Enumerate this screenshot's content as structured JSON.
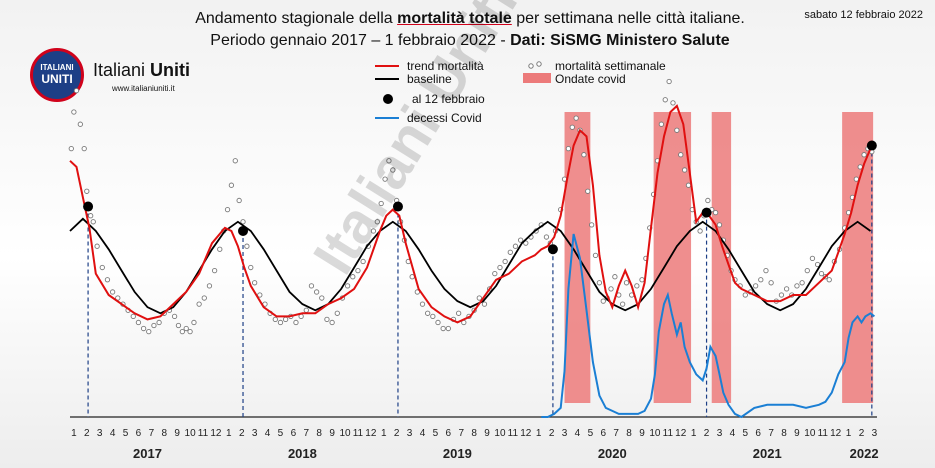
{
  "header": {
    "title_pre": "Andamento stagionale della ",
    "title_em": "mortalità totale",
    "title_post": " per settimana nelle città italiane.",
    "subtitle_pre": "Periodo gennaio 2017 – 1 febbraio 2022 - ",
    "subtitle_em": "Dati: SiSMG Ministero Salute",
    "date": "sabato 12 febbraio 2022"
  },
  "brand": {
    "logo_line1": "ITALIANI",
    "logo_line2": "UNITI",
    "name_pre": "Italiani ",
    "name_em": "Uniti",
    "site": "www.italianiuniti.it",
    "watermark": "Italiani Uniti"
  },
  "colors": {
    "trend": "#e01010",
    "baseline": "#000000",
    "weekly": "#7a7a7a",
    "covid_waves": "#ec7a7a",
    "covid_deaths": "#1b7fd4",
    "marker": "#000000"
  },
  "chart_data": {
    "type": "line",
    "x_unit": "month index (0 = start of Jan 2017)",
    "x_range": [
      0,
      62.5
    ],
    "y_range": [
      0,
      100
    ],
    "month_ticks": [
      "1",
      "2",
      "3",
      "4",
      "5",
      "6",
      "7",
      "8",
      "9",
      "10",
      "11",
      "12"
    ],
    "years": [
      {
        "label": "2017",
        "start": 0,
        "months": 12
      },
      {
        "label": "2018",
        "start": 12,
        "months": 12
      },
      {
        "label": "2019",
        "start": 24,
        "months": 12
      },
      {
        "label": "2020",
        "start": 36,
        "months": 12
      },
      {
        "label": "2021",
        "start": 48,
        "months": 12
      },
      {
        "label": "2022",
        "start": 60,
        "months": 3
      }
    ],
    "legend": [
      {
        "label": "trend mortalità",
        "kind": "line",
        "color": "#e01010"
      },
      {
        "label": "baseline",
        "kind": "line",
        "color": "#000000"
      },
      {
        "label": "al 12 febbraio",
        "kind": "marker",
        "color": "#000000"
      },
      {
        "label": "decessi Covid",
        "kind": "line",
        "color": "#1b7fd4"
      },
      {
        "label": "mortalità settimanale",
        "kind": "dot",
        "color": "#7a7a7a"
      },
      {
        "label": "Ondate covid",
        "kind": "band",
        "color": "#ec7a7a"
      }
    ],
    "covid_waves": [
      [
        38.3,
        40.3
      ],
      [
        45.2,
        48.1
      ],
      [
        49.7,
        51.2
      ],
      [
        59.8,
        62.2
      ]
    ],
    "markers": [
      {
        "x": 1.4,
        "y": 69
      },
      {
        "x": 13.4,
        "y": 61
      },
      {
        "x": 25.4,
        "y": 69
      },
      {
        "x": 37.4,
        "y": 55
      },
      {
        "x": 49.3,
        "y": 67
      },
      {
        "x": 62.1,
        "y": 89
      }
    ],
    "trend": {
      "x": [
        0,
        0.5,
        1,
        1.5,
        2,
        3,
        4,
        5,
        6,
        7,
        8,
        9,
        10,
        11,
        12,
        12.5,
        13,
        13.5,
        14,
        15,
        16,
        17,
        18,
        19,
        20,
        21,
        22,
        23,
        24,
        24.5,
        25,
        25.5,
        26,
        27,
        28,
        29,
        30,
        31,
        32,
        33,
        34,
        35,
        36,
        36.5,
        37,
        37.5,
        38,
        38.5,
        39,
        39.5,
        40,
        40.5,
        41,
        41.5,
        42,
        42.5,
        43,
        43.5,
        44,
        44.5,
        45,
        45.5,
        46,
        46.5,
        47,
        47.5,
        48,
        48.5,
        49,
        49.5,
        50,
        50.5,
        51,
        51.5,
        52,
        53,
        54,
        55,
        56,
        57,
        58,
        59,
        59.5,
        60,
        60.5,
        61,
        61.5,
        62,
        62.3
      ],
      "y": [
        84,
        82,
        72,
        62,
        47,
        40,
        37,
        34,
        32,
        33,
        37,
        41,
        47,
        57,
        62,
        61,
        56,
        49,
        43,
        36,
        33,
        33,
        34,
        34,
        37,
        39,
        42,
        49,
        61,
        66,
        68,
        66,
        57,
        42,
        36,
        33,
        31,
        33,
        39,
        45,
        47,
        51,
        53,
        55,
        56,
        59,
        66,
        78,
        89,
        94,
        92,
        76,
        53,
        41,
        36,
        43,
        48,
        43,
        36,
        44,
        62,
        80,
        92,
        100,
        102,
        96,
        80,
        64,
        67,
        66,
        63,
        56,
        50,
        44,
        42,
        40,
        38,
        38,
        40,
        40,
        44,
        48,
        54,
        60,
        67,
        76,
        83,
        88,
        90
      ]
    },
    "baseline": {
      "x": [
        0,
        1,
        2,
        3,
        4,
        5,
        6,
        7,
        8,
        9,
        10,
        11,
        12,
        13,
        14,
        15,
        16,
        17,
        18,
        19,
        20,
        21,
        22,
        23,
        24,
        25,
        26,
        27,
        28,
        29,
        30,
        31,
        32,
        33,
        34,
        35,
        36,
        37,
        38,
        39,
        40,
        41,
        42,
        43,
        44,
        45,
        46,
        47,
        48,
        49,
        50,
        51,
        52,
        53,
        54,
        55,
        56,
        57,
        58,
        59,
        60,
        61,
        62
      ],
      "y": [
        61,
        65,
        61,
        55,
        48,
        41,
        36,
        34,
        36,
        41,
        48,
        55,
        61,
        64,
        61,
        55,
        48,
        41,
        37,
        35,
        37,
        42,
        49,
        56,
        61,
        64,
        61,
        55,
        48,
        42,
        38,
        36,
        38,
        43,
        50,
        57,
        61,
        64,
        61,
        55,
        48,
        41,
        37,
        35,
        37,
        42,
        49,
        56,
        61,
        64,
        61,
        55,
        48,
        41,
        37,
        35,
        37,
        42,
        49,
        56,
        61,
        64,
        61
      ]
    },
    "covid_deaths": {
      "x": [
        36.5,
        37,
        37.5,
        38,
        38.3,
        38.6,
        39,
        39.5,
        40,
        40.5,
        41,
        41.5,
        42,
        42.5,
        43,
        43.5,
        44,
        44.5,
        45,
        45.3,
        45.6,
        46,
        46.3,
        46.6,
        47,
        47.3,
        47.6,
        48,
        48.5,
        49,
        49.3,
        49.6,
        50,
        50.3,
        50.6,
        51,
        51.5,
        52,
        53,
        54,
        55,
        56,
        57,
        58,
        58.5,
        59,
        59.5,
        60,
        60.3,
        60.6,
        61,
        61.3,
        61.6,
        62,
        62.3
      ],
      "y": [
        0,
        0,
        1,
        3,
        15,
        42,
        60,
        52,
        35,
        18,
        7,
        3,
        2,
        1,
        1,
        1,
        1,
        2,
        6,
        14,
        28,
        37,
        40,
        34,
        27,
        31,
        23,
        18,
        14,
        12,
        16,
        23,
        20,
        14,
        8,
        4,
        1,
        0,
        3,
        4,
        4,
        4,
        3,
        4,
        5,
        8,
        14,
        18,
        26,
        31,
        33,
        31,
        33,
        34,
        33
      ]
    },
    "weekly_dots": [
      [
        0.1,
        88
      ],
      [
        0.3,
        100
      ],
      [
        0.5,
        107
      ],
      [
        0.8,
        96
      ],
      [
        1.1,
        88
      ],
      [
        1.3,
        74
      ],
      [
        1.6,
        66
      ],
      [
        1.8,
        64
      ],
      [
        2.1,
        56
      ],
      [
        2.5,
        49
      ],
      [
        2.9,
        45
      ],
      [
        3.3,
        41
      ],
      [
        3.7,
        39
      ],
      [
        4.1,
        37
      ],
      [
        4.5,
        35
      ],
      [
        4.9,
        33
      ],
      [
        5.3,
        31
      ],
      [
        5.7,
        29
      ],
      [
        6.1,
        28
      ],
      [
        6.5,
        30
      ],
      [
        6.9,
        31
      ],
      [
        7.3,
        34
      ],
      [
        7.7,
        35
      ],
      [
        8.1,
        33
      ],
      [
        8.4,
        30
      ],
      [
        8.7,
        28
      ],
      [
        9.0,
        29
      ],
      [
        9.3,
        28
      ],
      [
        9.6,
        31
      ],
      [
        10.0,
        37
      ],
      [
        10.4,
        39
      ],
      [
        10.8,
        43
      ],
      [
        11.2,
        48
      ],
      [
        11.6,
        55
      ],
      [
        11.9,
        61
      ],
      [
        12.2,
        68
      ],
      [
        12.5,
        76
      ],
      [
        12.8,
        84
      ],
      [
        13.1,
        71
      ],
      [
        13.4,
        64
      ],
      [
        13.7,
        56
      ],
      [
        14.0,
        49
      ],
      [
        14.3,
        44
      ],
      [
        14.7,
        40
      ],
      [
        15.1,
        37
      ],
      [
        15.5,
        34
      ],
      [
        15.9,
        32
      ],
      [
        16.3,
        31
      ],
      [
        16.7,
        32
      ],
      [
        17.1,
        33
      ],
      [
        17.5,
        31
      ],
      [
        17.9,
        33
      ],
      [
        18.3,
        35
      ],
      [
        18.7,
        43
      ],
      [
        19.1,
        41
      ],
      [
        19.5,
        39
      ],
      [
        19.9,
        32
      ],
      [
        20.3,
        31
      ],
      [
        20.7,
        34
      ],
      [
        21.1,
        39
      ],
      [
        21.5,
        43
      ],
      [
        21.9,
        46
      ],
      [
        22.3,
        48
      ],
      [
        22.7,
        51
      ],
      [
        23.1,
        56
      ],
      [
        23.5,
        61
      ],
      [
        23.8,
        64
      ],
      [
        24.1,
        70
      ],
      [
        24.4,
        78
      ],
      [
        24.7,
        84
      ],
      [
        25.0,
        81
      ],
      [
        25.3,
        71
      ],
      [
        25.6,
        64
      ],
      [
        25.9,
        58
      ],
      [
        26.2,
        51
      ],
      [
        26.5,
        46
      ],
      [
        26.9,
        41
      ],
      [
        27.3,
        37
      ],
      [
        27.7,
        34
      ],
      [
        28.1,
        33
      ],
      [
        28.5,
        31
      ],
      [
        28.9,
        29
      ],
      [
        29.3,
        29
      ],
      [
        29.7,
        32
      ],
      [
        30.1,
        34
      ],
      [
        30.5,
        31
      ],
      [
        30.9,
        33
      ],
      [
        31.3,
        35
      ],
      [
        31.7,
        39
      ],
      [
        32.1,
        37
      ],
      [
        32.5,
        42
      ],
      [
        32.9,
        47
      ],
      [
        33.3,
        49
      ],
      [
        33.7,
        51
      ],
      [
        34.1,
        54
      ],
      [
        34.5,
        56
      ],
      [
        34.9,
        58
      ],
      [
        35.3,
        57
      ],
      [
        35.7,
        59
      ],
      [
        36.1,
        61
      ],
      [
        36.5,
        63
      ],
      [
        36.9,
        59
      ],
      [
        37.2,
        57
      ],
      [
        37.6,
        61
      ],
      [
        38.0,
        68
      ],
      [
        38.3,
        78
      ],
      [
        38.6,
        88
      ],
      [
        38.9,
        95
      ],
      [
        39.2,
        98
      ],
      [
        39.5,
        94
      ],
      [
        39.8,
        86
      ],
      [
        40.1,
        74
      ],
      [
        40.4,
        63
      ],
      [
        40.7,
        53
      ],
      [
        41.0,
        44
      ],
      [
        41.3,
        38
      ],
      [
        41.6,
        39
      ],
      [
        41.9,
        42
      ],
      [
        42.2,
        46
      ],
      [
        42.5,
        40
      ],
      [
        42.8,
        37
      ],
      [
        43.1,
        44
      ],
      [
        43.5,
        40
      ],
      [
        43.9,
        43
      ],
      [
        44.3,
        45
      ],
      [
        44.6,
        52
      ],
      [
        44.9,
        62
      ],
      [
        45.2,
        73
      ],
      [
        45.5,
        84
      ],
      [
        45.8,
        96
      ],
      [
        46.1,
        104
      ],
      [
        46.4,
        110
      ],
      [
        46.7,
        103
      ],
      [
        47.0,
        94
      ],
      [
        47.3,
        86
      ],
      [
        47.6,
        81
      ],
      [
        47.9,
        76
      ],
      [
        48.2,
        68
      ],
      [
        48.5,
        64
      ],
      [
        48.8,
        61
      ],
      [
        49.1,
        66
      ],
      [
        49.4,
        71
      ],
      [
        49.7,
        68
      ],
      [
        50.0,
        67
      ],
      [
        50.3,
        63
      ],
      [
        50.6,
        58
      ],
      [
        50.9,
        53
      ],
      [
        51.2,
        48
      ],
      [
        51.5,
        45
      ],
      [
        51.9,
        43
      ],
      [
        52.3,
        40
      ],
      [
        52.7,
        41
      ],
      [
        53.1,
        43
      ],
      [
        53.5,
        45
      ],
      [
        53.9,
        48
      ],
      [
        54.3,
        44
      ],
      [
        54.7,
        38
      ],
      [
        55.1,
        40
      ],
      [
        55.5,
        42
      ],
      [
        55.9,
        40
      ],
      [
        56.3,
        43
      ],
      [
        56.7,
        44
      ],
      [
        57.1,
        48
      ],
      [
        57.5,
        52
      ],
      [
        57.9,
        50
      ],
      [
        58.2,
        47
      ],
      [
        58.5,
        46
      ],
      [
        58.8,
        45
      ],
      [
        59.2,
        51
      ],
      [
        59.6,
        55
      ],
      [
        60.0,
        62
      ],
      [
        60.3,
        67
      ],
      [
        60.6,
        72
      ],
      [
        60.9,
        78
      ],
      [
        61.2,
        82
      ],
      [
        61.5,
        86
      ],
      [
        61.8,
        88
      ],
      [
        62.1,
        87
      ]
    ]
  }
}
